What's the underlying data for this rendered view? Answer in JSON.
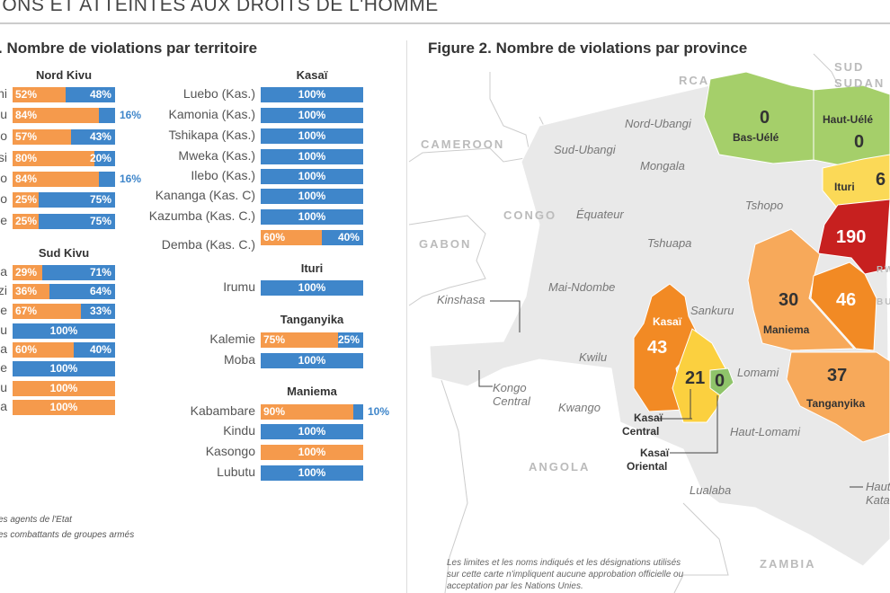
{
  "header": {
    "title": "IONS ET ATTEINTES AUX DROITS DE L'HOMME"
  },
  "figure1": {
    "title": ". Nombre de violations par territoire"
  },
  "figure2": {
    "title": "Figure 2. Nombre de violations par province"
  },
  "legend": [
    "es agents de l'Etat",
    "es combattants de groupes armés"
  ],
  "chart_data": {
    "type": "bar",
    "stacked": "100%",
    "colors": {
      "orange": "#f59a4c",
      "blue": "#3f86ca"
    },
    "groups": [
      {
        "name": "Nord Kivu",
        "rows": [
          {
            "label": "ni",
            "orange": 52,
            "blue": 48
          },
          {
            "label": "u",
            "orange": 84,
            "blue": 16
          },
          {
            "label": "o",
            "orange": 57,
            "blue": 43
          },
          {
            "label": "si",
            "orange": 80,
            "blue": 20
          },
          {
            "label": "o",
            "orange": 84,
            "blue": 16
          },
          {
            "label": "o",
            "orange": 25,
            "blue": 75
          },
          {
            "label": "e",
            "orange": 25,
            "blue": 75
          }
        ]
      },
      {
        "name": "Sud Kivu",
        "rows": [
          {
            "label": "a",
            "orange": 29,
            "blue": 71
          },
          {
            "label": "zi",
            "orange": 36,
            "blue": 64
          },
          {
            "label": "e",
            "orange": 67,
            "blue": 33
          },
          {
            "label": "u",
            "orange": 0,
            "blue": 100
          },
          {
            "label": "a",
            "orange": 60,
            "blue": 40
          },
          {
            "label": "e",
            "orange": 0,
            "blue": 100
          },
          {
            "label": "u",
            "orange": 100,
            "blue": 0
          },
          {
            "label": "a",
            "orange": 100,
            "blue": 0
          }
        ]
      },
      {
        "name": "Kasaï",
        "rows": [
          {
            "label": "Luebo (Kas.)",
            "orange": 0,
            "blue": 100
          },
          {
            "label": "Kamonia (Kas.)",
            "orange": 0,
            "blue": 100
          },
          {
            "label": "Tshikapa (Kas.)",
            "orange": 0,
            "blue": 100
          },
          {
            "label": "Mweka (Kas.)",
            "orange": 0,
            "blue": 100
          },
          {
            "label": "Ilebo (Kas.)",
            "orange": 0,
            "blue": 100
          },
          {
            "label": "Kananga (Kas. C)",
            "orange": 0,
            "blue": 100
          },
          {
            "label": "Kazumba (Kas. C.)",
            "orange": 0,
            "blue": 100
          },
          {
            "label": "Demba (Kas. C.)",
            "orange": 60,
            "blue": 40
          }
        ]
      },
      {
        "name": "Ituri",
        "rows": [
          {
            "label": "Irumu",
            "orange": 0,
            "blue": 100
          }
        ]
      },
      {
        "name": "Tanganyika",
        "rows": [
          {
            "label": "Kalemie",
            "orange": 75,
            "blue": 25
          },
          {
            "label": "Moba",
            "orange": 0,
            "blue": 100
          }
        ]
      },
      {
        "name": "Maniema",
        "rows": [
          {
            "label": "Kabambare",
            "orange": 90,
            "blue": 10
          },
          {
            "label": "Kindu",
            "orange": 0,
            "blue": 100
          },
          {
            "label": "Kasongo",
            "orange": 100,
            "blue": 0
          },
          {
            "label": "Lubutu",
            "orange": 0,
            "blue": 100
          }
        ]
      }
    ]
  },
  "map": {
    "countries": [
      "RCA",
      "SUD",
      "SUDAN",
      "CAMEROON",
      "CONGO",
      "GABON",
      "ANGOLA",
      "ZAMBIA",
      "RW",
      "BU"
    ],
    "uncolored_provinces": [
      "Nord-Ubangi",
      "Sud-Ubangi",
      "Mongala",
      "Équateur",
      "Tshopo",
      "Tshuapa",
      "Mai-Ndombe",
      "Kinshasa",
      "Sankuru",
      "Kwilu",
      "Lomami",
      "Kongo",
      "Central",
      "Kwango",
      "Haut-Lomami",
      "Lualaba",
      "Haut",
      "Kata"
    ],
    "provinces": [
      {
        "name": "Bas-Uélé",
        "value": "0",
        "color": "#a5cf6a"
      },
      {
        "name": "Haut-Uélé",
        "value": "0",
        "color": "#a5cf6a"
      },
      {
        "name": "Ituri",
        "value": "6",
        "color": "#fbd957"
      },
      {
        "name": "",
        "value": "190",
        "color": "#c7201f"
      },
      {
        "name": "Maniema",
        "value": "30",
        "color": "#f7a95a"
      },
      {
        "name": "",
        "value": "46",
        "color": "#f28a24"
      },
      {
        "name": "Tanganyika",
        "value": "37",
        "color": "#f7a95a"
      },
      {
        "name": "Kasaï",
        "value": "43",
        "color": "#f28a24"
      },
      {
        "name": "Kasaï Central",
        "value": "21",
        "color": "#fbd03f"
      },
      {
        "name": "Kasaï Oriental",
        "value": "0",
        "color": "#8fc46a"
      }
    ],
    "kasai_central_lines": [
      "Kasaï",
      "Central"
    ],
    "kasai_oriental_lines": [
      "Kasaï",
      "Oriental"
    ],
    "disclaimer": "Les limites et les noms indiqués et les désignations utilisés sur cette carte n'impliquent aucune approbation officielle ou acceptation par les Nations Unies."
  }
}
